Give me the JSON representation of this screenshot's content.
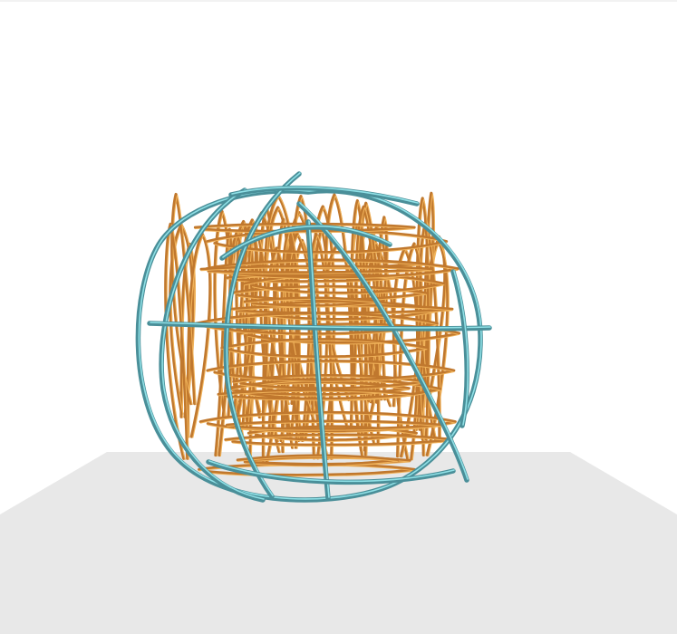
{
  "scene": {
    "background_color": "#ffffff",
    "floor_color": "#e8e8e8",
    "floor_edge_color": "#f2f2f2",
    "inner_stroke_color": "#c0782e",
    "inner_highlight_color": "#f0b25a",
    "cage_stroke_color": "#4a8f99",
    "cage_highlight_color": "#8fe0e6"
  }
}
